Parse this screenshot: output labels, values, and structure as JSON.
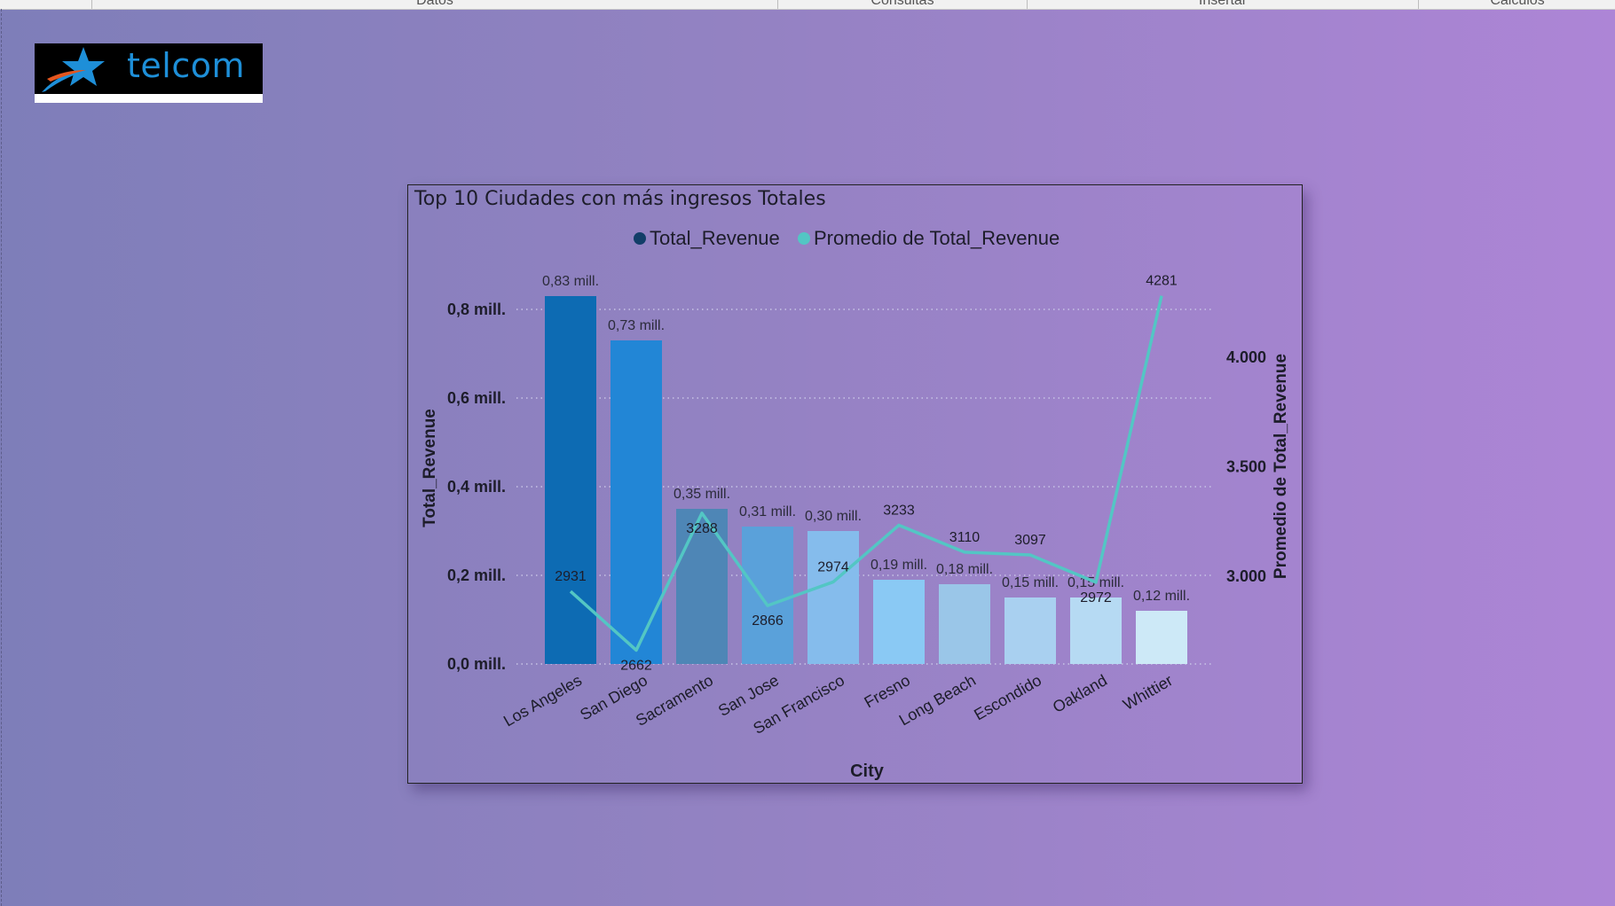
{
  "ribbon": {
    "groups": [
      "Datos",
      "Consultas",
      "Insertar",
      "Cálculos"
    ]
  },
  "logo": {
    "text": "telcom",
    "icon": "star-swoosh-logo-icon"
  },
  "colors": {
    "bars": [
      "#0d6bb3",
      "#2286d6",
      "#4e86b6",
      "#5aa1da",
      "#85bcec",
      "#8ac9f4",
      "#9ac6e8",
      "#a9d0f0",
      "#b6daf3",
      "#cde9f7"
    ],
    "line": "#53c6c4",
    "legend_total": "#123e68",
    "legend_avg": "#53c6c4",
    "grid": "#c8c4e6"
  },
  "chart_data": {
    "type": "bar",
    "title": "Top 10 Ciudades con más ingresos Totales",
    "xlabel": "City",
    "ylabel": "Total_Revenue",
    "y2label": "Promedio de Total_Revenue",
    "legend_position": "top-center",
    "grid": true,
    "categories": [
      "Los Angeles",
      "San Diego",
      "Sacramento",
      "San Jose",
      "San Francisco",
      "Fresno",
      "Long Beach",
      "Escondido",
      "Oakland",
      "Whittier"
    ],
    "series": [
      {
        "name": "Total_Revenue",
        "type": "bar",
        "axis": "left",
        "values": [
          830000,
          730000,
          350000,
          310000,
          300000,
          190000,
          180000,
          150000,
          150000,
          120000
        ],
        "labels": [
          "0,83 mill.",
          "0,73 mill.",
          "0,35 mill.",
          "0,31 mill.",
          "0,30 mill.",
          "0,19 mill.",
          "0,18 mill.",
          "0,15 mill.",
          "0,15 mill.",
          "0,12 mill."
        ]
      },
      {
        "name": "Promedio de Total_Revenue",
        "type": "line",
        "axis": "right",
        "values": [
          2931,
          2662,
          3288,
          2866,
          2974,
          3233,
          3110,
          3097,
          2972,
          4281
        ],
        "labels": [
          "2931",
          "2662",
          "3288",
          "2866",
          "2974",
          "3233",
          "3110",
          "3097",
          "2972",
          "4281"
        ]
      }
    ],
    "ylim": [
      0,
      830000
    ],
    "y_ticks": [
      0,
      200000,
      400000,
      600000,
      800000
    ],
    "y_tick_labels": [
      "0,0 mill.",
      "0,2 mill.",
      "0,4 mill.",
      "0,6 mill.",
      "0,8 mill."
    ],
    "y2lim": [
      2600,
      4281
    ],
    "y2_ticks": [
      3000,
      3500,
      4000
    ],
    "y2_tick_labels": [
      "3.000",
      "3.500",
      "4.000"
    ]
  }
}
